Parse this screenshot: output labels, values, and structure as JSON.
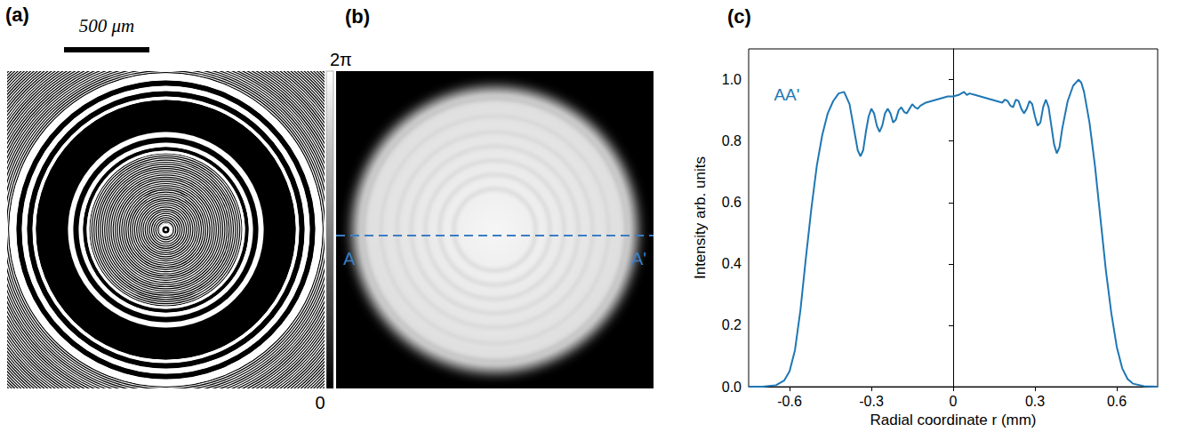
{
  "panels": {
    "a": {
      "label": "(a)",
      "scale_bar": "500 μm"
    },
    "colorbar": {
      "max_label": "2π",
      "min_label": "0"
    },
    "b": {
      "label": "(b)",
      "line_start": "A",
      "line_end": "A'"
    }
  },
  "chart_data": {
    "label": "(c)",
    "type": "line",
    "x_label": "Radial coordinate r (mm)",
    "y_label": "Intensity arb. units",
    "xlim": [
      -0.75,
      0.75
    ],
    "xticks": [
      -0.6,
      -0.3,
      0,
      0.3,
      0.6
    ],
    "ylim": [
      0,
      1.1
    ],
    "yticks": [
      {
        "value": 0,
        "label": "0.0"
      },
      0.2,
      0.4,
      0.6,
      0.8,
      {
        "value": 1,
        "label": "1.0"
      }
    ],
    "grid": false,
    "x": [
      -0.75,
      -0.7,
      -0.65,
      -0.62,
      -0.6,
      -0.58,
      -0.56,
      -0.54,
      -0.52,
      -0.5,
      -0.48,
      -0.46,
      -0.44,
      -0.42,
      -0.4,
      -0.38,
      -0.36,
      -0.35,
      -0.34,
      -0.33,
      -0.32,
      -0.31,
      -0.3,
      -0.29,
      -0.28,
      -0.27,
      -0.26,
      -0.25,
      -0.24,
      -0.23,
      -0.22,
      -0.21,
      -0.2,
      -0.19,
      -0.18,
      -0.17,
      -0.16,
      -0.15,
      -0.14,
      -0.13,
      -0.12,
      -0.1,
      -0.08,
      -0.06,
      -0.04,
      -0.02,
      0,
      0.02,
      0.03,
      0.04,
      0.05,
      0.06,
      0.08,
      0.1,
      0.12,
      0.14,
      0.16,
      0.18,
      0.19,
      0.2,
      0.21,
      0.22,
      0.23,
      0.24,
      0.25,
      0.26,
      0.27,
      0.28,
      0.29,
      0.3,
      0.31,
      0.32,
      0.33,
      0.34,
      0.35,
      0.36,
      0.37,
      0.38,
      0.39,
      0.4,
      0.42,
      0.44,
      0.46,
      0.47,
      0.48,
      0.5,
      0.52,
      0.54,
      0.56,
      0.58,
      0.6,
      0.62,
      0.64,
      0.66,
      0.7,
      0.75
    ],
    "series": [
      {
        "color": "#1f77b4",
        "values": [
          0,
          0,
          0.005,
          0.02,
          0.05,
          0.12,
          0.25,
          0.42,
          0.58,
          0.72,
          0.82,
          0.89,
          0.93,
          0.955,
          0.96,
          0.92,
          0.82,
          0.77,
          0.75,
          0.77,
          0.83,
          0.88,
          0.905,
          0.89,
          0.85,
          0.83,
          0.85,
          0.89,
          0.905,
          0.89,
          0.86,
          0.87,
          0.9,
          0.91,
          0.895,
          0.89,
          0.905,
          0.92,
          0.91,
          0.905,
          0.915,
          0.925,
          0.93,
          0.935,
          0.94,
          0.945,
          0.945,
          0.95,
          0.955,
          0.96,
          0.95,
          0.955,
          0.95,
          0.945,
          0.94,
          0.935,
          0.93,
          0.925,
          0.935,
          0.93,
          0.915,
          0.91,
          0.935,
          0.93,
          0.905,
          0.89,
          0.905,
          0.93,
          0.92,
          0.88,
          0.85,
          0.86,
          0.91,
          0.935,
          0.91,
          0.85,
          0.79,
          0.76,
          0.78,
          0.84,
          0.93,
          0.98,
          1.0,
          0.99,
          0.96,
          0.86,
          0.72,
          0.55,
          0.38,
          0.24,
          0.13,
          0.06,
          0.025,
          0.01,
          0.002,
          0
        ]
      }
    ],
    "annotations": [
      {
        "text": "AA'",
        "x": -0.61,
        "y": 0.95
      }
    ]
  }
}
